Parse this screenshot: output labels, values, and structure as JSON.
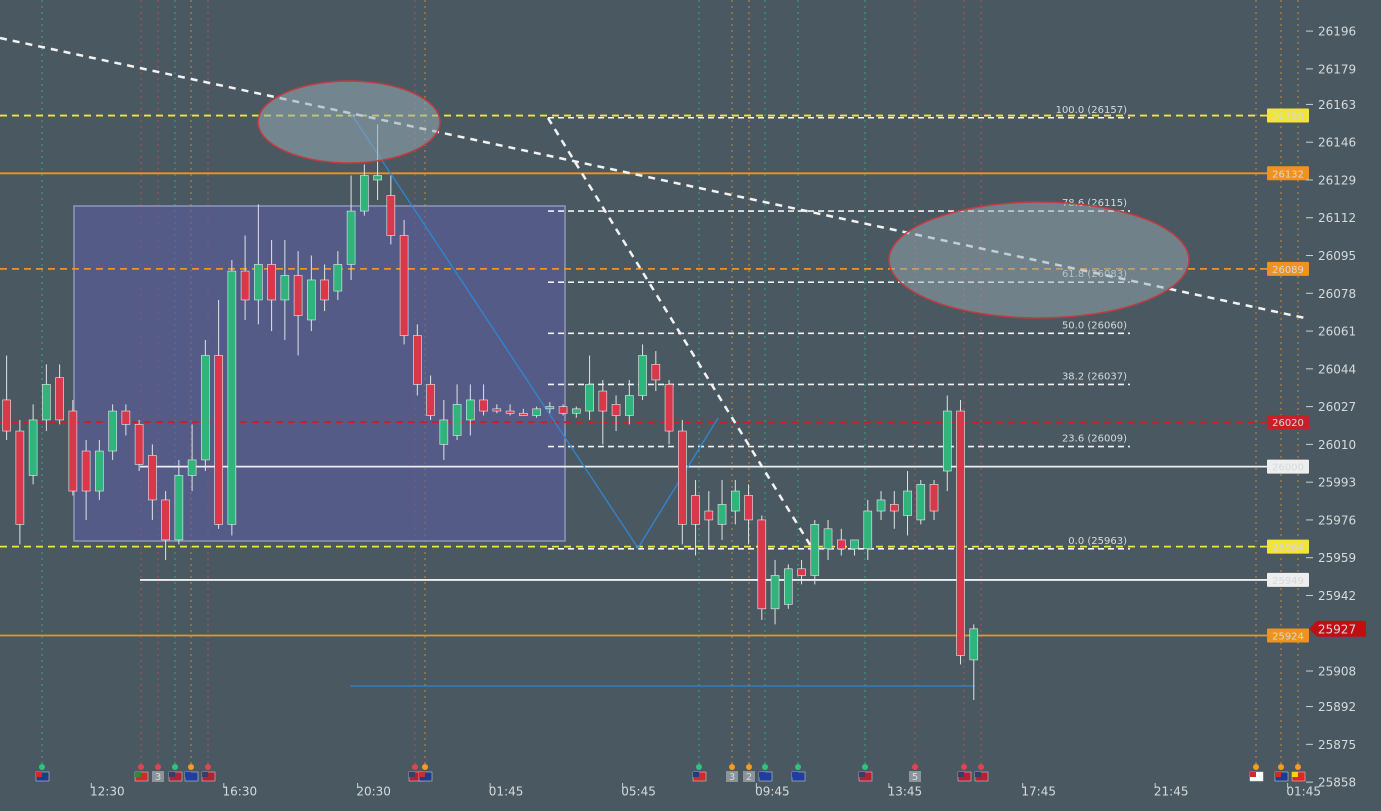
{
  "chart_data": {
    "type": "candlestick",
    "ylim": [
      25845,
      26210
    ],
    "yticks": [
      26196,
      26179,
      26163,
      26146,
      26129,
      26112,
      26095,
      26078,
      26061,
      26044,
      26027,
      26010,
      25993,
      25976,
      25959,
      25942,
      25908,
      25892,
      25875,
      25858
    ],
    "xlim": [
      0,
      98.5
    ],
    "xticks": [
      {
        "value": 8.1,
        "label": "12:30"
      },
      {
        "value": 18.1,
        "label": "16:30"
      },
      {
        "value": 28.2,
        "label": "20:30"
      },
      {
        "value": 38.2,
        "label": "01:45"
      },
      {
        "value": 48.2,
        "label": "05:45"
      },
      {
        "value": 58.3,
        "label": "09:45"
      },
      {
        "value": 68.3,
        "label": "13:45"
      },
      {
        "value": 78.4,
        "label": "17:45"
      },
      {
        "value": 88.4,
        "label": "21:45"
      },
      {
        "value": 98.4,
        "label": "01:45"
      }
    ],
    "up_color": "#2fb47c",
    "down_color": "#d8384a",
    "series": [
      {
        "open": [
          26030,
          26016,
          25996,
          26021,
          26040,
          26025,
          26007,
          25989,
          26007,
          26025,
          26019,
          26005,
          25985,
          25967,
          25996,
          26003,
          26050,
          25974,
          26088,
          26075,
          26091,
          26075,
          26086,
          26066,
          26084,
          26079,
          26091,
          26115,
          26129,
          26122,
          26104,
          26059,
          26037,
          26010,
          26014,
          26021,
          26030,
          26026,
          26025,
          26024,
          26023,
          26026,
          26027,
          26024,
          26025,
          26034,
          26028,
          26023,
          26032,
          26046,
          26037,
          26016,
          25987,
          25980,
          25974,
          25980,
          25987,
          25976,
          25936,
          25938,
          25954,
          25951,
          25963,
          25967,
          25963,
          25963,
          25980,
          25983,
          25978,
          25976,
          25992,
          25998,
          26025,
          25913
        ],
        "high": [
          26050,
          26021,
          26028,
          26046,
          26046,
          26030,
          26012,
          26012,
          26028,
          26028,
          26021,
          26010,
          25989,
          26003,
          26019,
          26057,
          26075,
          26093,
          26104,
          26118,
          26102,
          26102,
          26097,
          26095,
          26091,
          26097,
          26131,
          26136,
          26154,
          26131,
          26111,
          26064,
          26041,
          26030,
          26037,
          26037,
          26037,
          26028,
          26028,
          26026,
          26027,
          26029,
          26028,
          26027,
          26050,
          26039,
          26032,
          26039,
          26055,
          26052,
          26039,
          26021,
          25994,
          25989,
          25994,
          25994,
          25992,
          25978,
          25958,
          25956,
          25958,
          25976,
          25976,
          25972,
          25967,
          25985,
          25989,
          25989,
          25998,
          25994,
          25994,
          26032,
          26030,
          25929
        ],
        "low": [
          26012,
          25965,
          25992,
          26016,
          26019,
          25987,
          25976,
          25985,
          26003,
          26014,
          25998,
          25976,
          25958,
          25965,
          25989,
          25998,
          25972,
          25969,
          26066,
          26064,
          26061,
          26057,
          26050,
          26061,
          26070,
          26075,
          26084,
          26113,
          26120,
          26100,
          26055,
          26032,
          26021,
          26003,
          26012,
          26014,
          26023,
          26024,
          26023,
          26023,
          26022,
          26024,
          26023,
          26022,
          26021,
          26010,
          26016,
          26019,
          26030,
          26034,
          26010,
          25965,
          25960,
          25963,
          25967,
          25974,
          25965,
          25931,
          25929,
          25936,
          25947,
          25947,
          25958,
          25960,
          25960,
          25958,
          25976,
          25972,
          25969,
          25974,
          25976,
          25989,
          25911,
          25895
        ],
        "close": [
          26016,
          25974,
          26021,
          26037,
          26021,
          25989,
          25989,
          26007,
          26025,
          26019,
          26001,
          25985,
          25967,
          25996,
          26003,
          26050,
          25974,
          26088,
          26075,
          26091,
          26075,
          26086,
          26068,
          26084,
          26075,
          26091,
          26115,
          26131,
          26131,
          26104,
          26059,
          26037,
          26023,
          26021,
          26028,
          26030,
          26025,
          26025,
          26024,
          26023,
          26026,
          26027,
          26024,
          26026,
          26037,
          26025,
          26023,
          26032,
          26050,
          26039,
          26016,
          25974,
          25974,
          25976,
          25983,
          25989,
          25976,
          25936,
          25951,
          25954,
          25951,
          25974,
          25972,
          25963,
          25967,
          25980,
          25985,
          25980,
          25989,
          25992,
          25980,
          26025,
          25915,
          25927
        ]
      }
    ],
    "levels": [
      {
        "value": 26158,
        "color": "#f3e43a",
        "style": "dashed"
      },
      {
        "value": 26132,
        "color": "#f0921c",
        "style": "solid"
      },
      {
        "value": 26089,
        "color": "#f0921c",
        "style": "dashed"
      },
      {
        "value": 26020,
        "color": "#c8202a",
        "style": "dashed"
      },
      {
        "value": 26000,
        "color": "#eeeeee",
        "style": "solid"
      },
      {
        "value": 25964,
        "color": "#f3e43a",
        "style": "dashed"
      },
      {
        "value": 25949,
        "color": "#eeeeee",
        "style": "solid"
      },
      {
        "value": 25924,
        "color": "#f0921c",
        "style": "solid"
      }
    ],
    "last_price": {
      "value": 25927,
      "color": "#c00f14"
    },
    "fibonacci": [
      {
        "label": "100.0 (26157)",
        "value": 26157
      },
      {
        "label": "78.6 (26115)",
        "value": 26115
      },
      {
        "label": "61.8 (26083)",
        "value": 26083
      },
      {
        "label": "50.0 (26060)",
        "value": 26060
      },
      {
        "label": "38.2 (26037)",
        "value": 26037
      },
      {
        "label": "23.6 (26009)",
        "value": 26009
      },
      {
        "label": "0.0 (25963)",
        "value": 25963
      }
    ],
    "event_badges": [
      "3",
      "3",
      "2",
      "5"
    ]
  }
}
